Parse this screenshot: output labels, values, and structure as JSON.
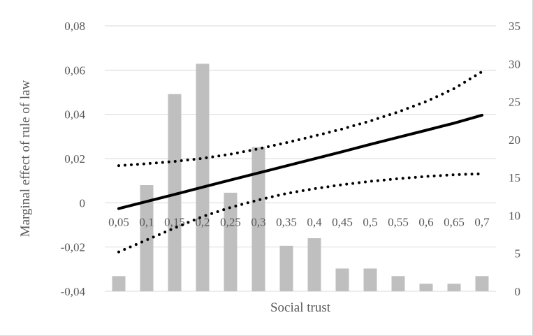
{
  "chart_data": {
    "type": "bar",
    "xlabel": "Social trust",
    "ylabel": "Marginal effect of rule of law",
    "categories": [
      "0,05",
      "0,1",
      "0,15",
      "0,2",
      "0,25",
      "0,3",
      "0,35",
      "0,4",
      "0,45",
      "0,5",
      "0,55",
      "0,6",
      "0,65",
      "0,7"
    ],
    "y_left": {
      "lim": [
        -0.04,
        0.08
      ],
      "ticks": [
        "-0,04",
        "-0,02",
        "0",
        "0,02",
        "0,04",
        "0,06",
        "0,08"
      ],
      "tick_values": [
        -0.04,
        -0.02,
        0,
        0.02,
        0.04,
        0.06,
        0.08
      ]
    },
    "y_right": {
      "lim": [
        0,
        35
      ],
      "ticks": [
        "0",
        "5",
        "10",
        "15",
        "20",
        "25",
        "30",
        "35"
      ],
      "tick_values": [
        0,
        5,
        10,
        15,
        20,
        25,
        30,
        35
      ]
    },
    "grid": "horizontal",
    "series": [
      {
        "kind": "bar",
        "axis": "right",
        "color": "#bfbfbf",
        "values": [
          2,
          14,
          26,
          30,
          13,
          19,
          6,
          7,
          3,
          3,
          2,
          1,
          1,
          2
        ]
      },
      {
        "kind": "line",
        "axis": "left",
        "style": "solid",
        "color": "#000000",
        "values": [
          -0.0026,
          0.0006,
          0.0038,
          0.0071,
          0.0103,
          0.0135,
          0.0167,
          0.0199,
          0.0231,
          0.0264,
          0.0296,
          0.0328,
          0.036,
          0.0396
        ]
      },
      {
        "kind": "line",
        "axis": "left",
        "style": "dotted",
        "color": "#000000",
        "values": [
          0.0168,
          0.0177,
          0.0187,
          0.0201,
          0.022,
          0.0244,
          0.0272,
          0.0302,
          0.0334,
          0.037,
          0.0411,
          0.0458,
          0.0516,
          0.0593
        ]
      },
      {
        "kind": "line",
        "axis": "left",
        "style": "dotted",
        "color": "#000000",
        "values": [
          -0.0222,
          -0.0168,
          -0.0114,
          -0.0062,
          -0.0021,
          0.0013,
          0.0042,
          0.0064,
          0.0082,
          0.0097,
          0.0109,
          0.0119,
          0.0127,
          0.0131
        ]
      }
    ]
  }
}
